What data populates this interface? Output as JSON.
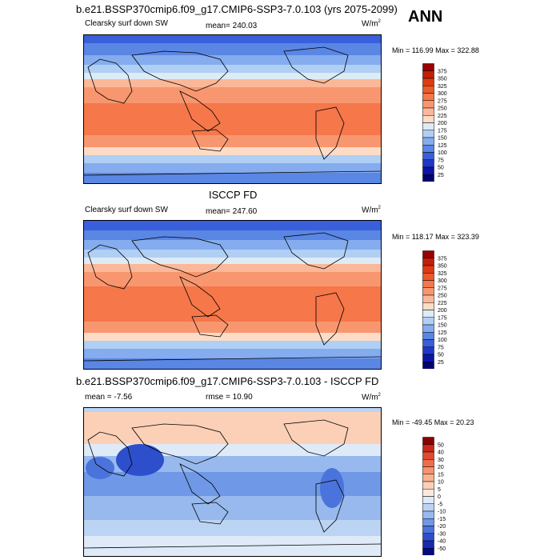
{
  "header": {
    "title": "b.e21.BSSP370cmip6.f09_g17.CMIP6-SSP3-7.0.103 (yrs 2075-2099)",
    "season": "ANN"
  },
  "chart_data": [
    {
      "type": "heatmap",
      "title": "Clearsky surf down SW",
      "stat_label": "mean= 240.03",
      "units": "W/m",
      "units_exp": "2",
      "minmax": "Min = 116.99 Max = 322.88",
      "colorbar_levels": [
        "375",
        "350",
        "325",
        "300",
        "275",
        "250",
        "225",
        "200",
        "175",
        "150",
        "125",
        "100",
        "75",
        "50",
        "25"
      ],
      "colorbar_colors": [
        "#990000",
        "#c41e08",
        "#dd3b13",
        "#ec5a2a",
        "#f5774a",
        "#f8976f",
        "#fbb899",
        "#fcdcc6",
        "#ddebf7",
        "#b0cff4",
        "#84acee",
        "#5a86e4",
        "#3a5fdb",
        "#2137c7",
        "#0c14a8",
        "#03016e"
      ]
    },
    {
      "type": "heatmap",
      "title_center": "ISCCP FD",
      "title": "Clearsky surf down SW",
      "stat_label": "mean= 247.60",
      "units": "W/m",
      "units_exp": "2",
      "minmax": "Min = 118.17 Max = 323.39",
      "colorbar_levels": [
        "375",
        "350",
        "325",
        "300",
        "275",
        "250",
        "225",
        "200",
        "175",
        "150",
        "125",
        "100",
        "75",
        "50",
        "25"
      ],
      "colorbar_colors": [
        "#990000",
        "#c41e08",
        "#dd3b13",
        "#ec5a2a",
        "#f5774a",
        "#f8976f",
        "#fbb899",
        "#fcdcc6",
        "#ddebf7",
        "#b0cff4",
        "#84acee",
        "#5a86e4",
        "#3a5fdb",
        "#2137c7",
        "#0c14a8",
        "#03016e"
      ]
    },
    {
      "type": "heatmap",
      "title_center": "b.e21.BSSP370cmip6.f09_g17.CMIP6-SSP3-7.0.103 - ISCCP FD",
      "stat_label": "mean =  -7.56",
      "stat_label2": "rmse =  10.90",
      "units": "W/m",
      "units_exp": "2",
      "minmax": "Min = -49.45 Max =  20.23",
      "colorbar_levels": [
        "50",
        "40",
        "30",
        "20",
        "15",
        "10",
        "5",
        "0",
        "-5",
        "-10",
        "-15",
        "-20",
        "-30",
        "-40",
        "-50"
      ],
      "colorbar_colors": [
        "#8b0000",
        "#c8281a",
        "#e04a30",
        "#ef6e4a",
        "#f6936f",
        "#f9b292",
        "#fbd0b7",
        "#fde9dc",
        "#dfeaf8",
        "#bcd4f3",
        "#97b9ee",
        "#6f98e6",
        "#4a73dc",
        "#2d4fcc",
        "#1729b0",
        "#050a80"
      ]
    }
  ]
}
